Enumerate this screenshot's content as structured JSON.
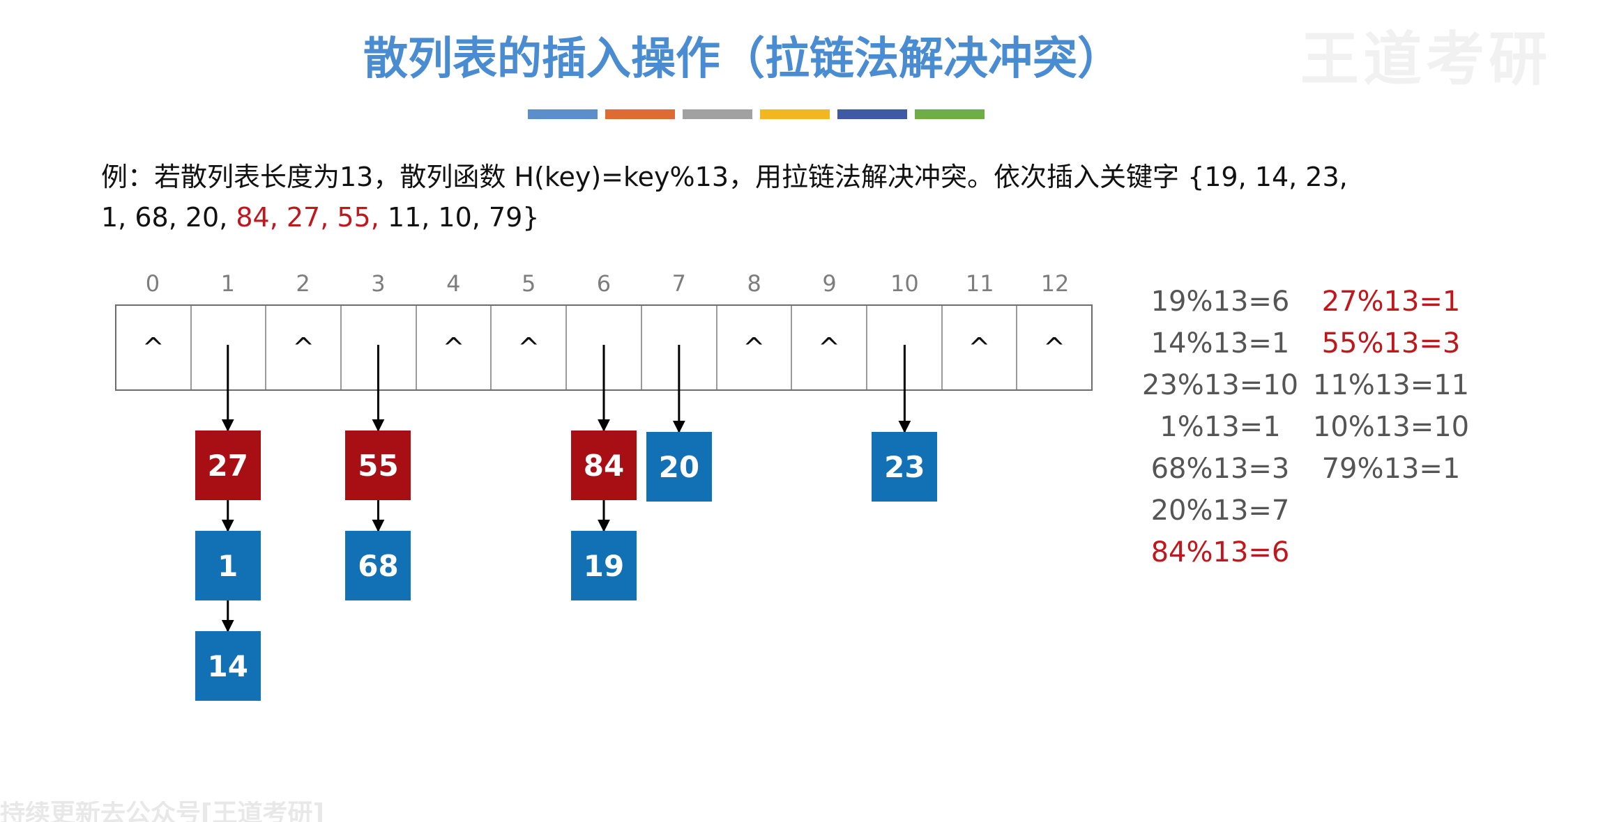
{
  "title": "散列表的插入操作（拉链法解决冲突）",
  "watermark": "王道考研",
  "title_underline_colors": [
    "#5a8fcb",
    "#dd6b33",
    "#a1a1a1",
    "#f2b620",
    "#3f5aa4",
    "#6fad47"
  ],
  "example": {
    "text_1": "例：若散列表长度为13，散列函数 H(key)=key%13，用拉链法解决冲突。依次插入关键字 {19, 14, 23,",
    "text_2": "1, 68, 20, ",
    "text_red": "84, 27, 55,",
    "text_3": " 11, 10, 79}"
  },
  "table": {
    "indices": [
      "0",
      "1",
      "2",
      "3",
      "4",
      "5",
      "6",
      "7",
      "8",
      "9",
      "10",
      "11",
      "12"
    ],
    "empty_marker": "^",
    "empty_slots": [
      0,
      2,
      4,
      5,
      8,
      9,
      11,
      12
    ],
    "chains": [
      {
        "slot": 1,
        "keys": [
          "27",
          "1",
          "14"
        ],
        "highlighted": [
          "27"
        ]
      },
      {
        "slot": 3,
        "keys": [
          "55",
          "68"
        ],
        "highlighted": [
          "55"
        ]
      },
      {
        "slot": 6,
        "keys": [
          "84",
          "19"
        ],
        "highlighted": [
          "84"
        ]
      },
      {
        "slot": 7,
        "keys": [
          "20"
        ],
        "highlighted": []
      },
      {
        "slot": 10,
        "keys": [
          "23"
        ],
        "highlighted": []
      }
    ]
  },
  "colors": {
    "node_blue": "#1270b4",
    "node_red": "#a80f14",
    "highlight_text": "#c0161c"
  },
  "calculations": {
    "left_column": [
      {
        "text": "19%13=6",
        "highlighted": false
      },
      {
        "text": "14%13=1",
        "highlighted": false
      },
      {
        "text": "23%13=10",
        "highlighted": false
      },
      {
        "text": "1%13=1",
        "highlighted": false
      },
      {
        "text": "68%13=3",
        "highlighted": false
      },
      {
        "text": "20%13=7",
        "highlighted": false
      },
      {
        "text": "84%13=6",
        "highlighted": true
      }
    ],
    "right_column": [
      {
        "text": "27%13=1",
        "highlighted": true
      },
      {
        "text": "55%13=3",
        "highlighted": true
      },
      {
        "text": "11%13=11",
        "highlighted": false
      },
      {
        "text": "10%13=10",
        "highlighted": false
      },
      {
        "text": "79%13=1",
        "highlighted": false
      }
    ]
  },
  "subtitle": "持续更新去公众号[王道考研]"
}
